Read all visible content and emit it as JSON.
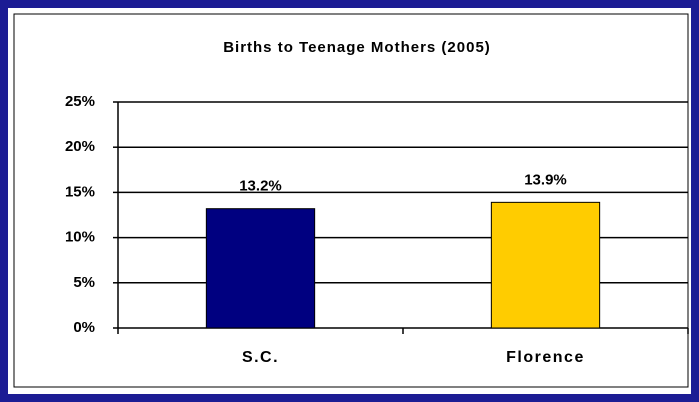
{
  "chart_data": {
    "type": "bar",
    "title": "Births to Teenage Mothers (2005)",
    "categories": [
      "S.C.",
      "Florence"
    ],
    "values": [
      13.2,
      13.9
    ],
    "value_labels": [
      "13.2%",
      "13.9%"
    ],
    "colors": [
      "#000080",
      "#ffcc00"
    ],
    "ylim": [
      0,
      25
    ],
    "yticks": [
      {
        "value": 0,
        "label": "0%"
      },
      {
        "value": 5,
        "label": "5%"
      },
      {
        "value": 10,
        "label": "10%"
      },
      {
        "value": 15,
        "label": "15%"
      },
      {
        "value": 20,
        "label": "20%"
      },
      {
        "value": 25,
        "label": "25%"
      }
    ],
    "grid": true
  }
}
